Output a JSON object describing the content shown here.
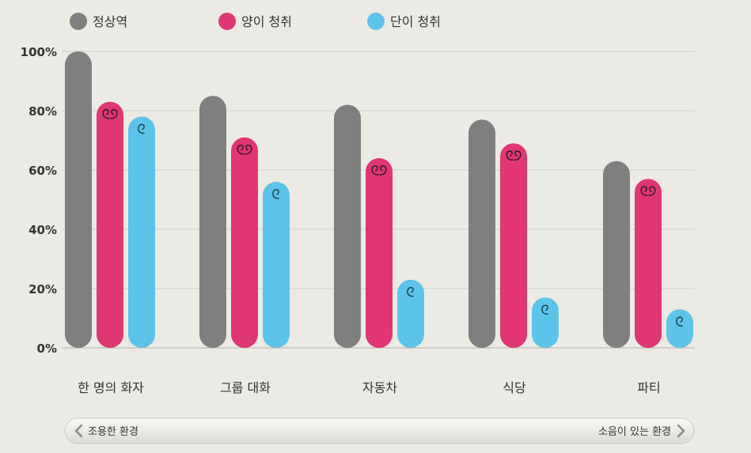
{
  "chart_data": {
    "type": "bar",
    "title": "",
    "xlabel": "",
    "ylabel": "",
    "ylim": [
      0,
      100
    ],
    "yticks": [
      "0%",
      "20%",
      "40%",
      "60%",
      "80%",
      "100%"
    ],
    "categories": [
      "한 명의 화자",
      "그룹 대화",
      "자동차",
      "식당",
      "파티"
    ],
    "series": [
      {
        "name": "정상역",
        "color": "#7F7F7F",
        "values": [
          100,
          85,
          82,
          77,
          63
        ]
      },
      {
        "name": "양이 청취",
        "color": "#E03673",
        "values": [
          83,
          71,
          64,
          69,
          57
        ]
      },
      {
        "name": "단이 청취",
        "color": "#5CC4E8",
        "values": [
          78,
          56,
          23,
          17,
          13
        ]
      }
    ],
    "legend_position": "top",
    "grid": true
  },
  "environment_scale": {
    "left_label": "조용한 환경",
    "right_label": "소음이 있는 환경"
  }
}
